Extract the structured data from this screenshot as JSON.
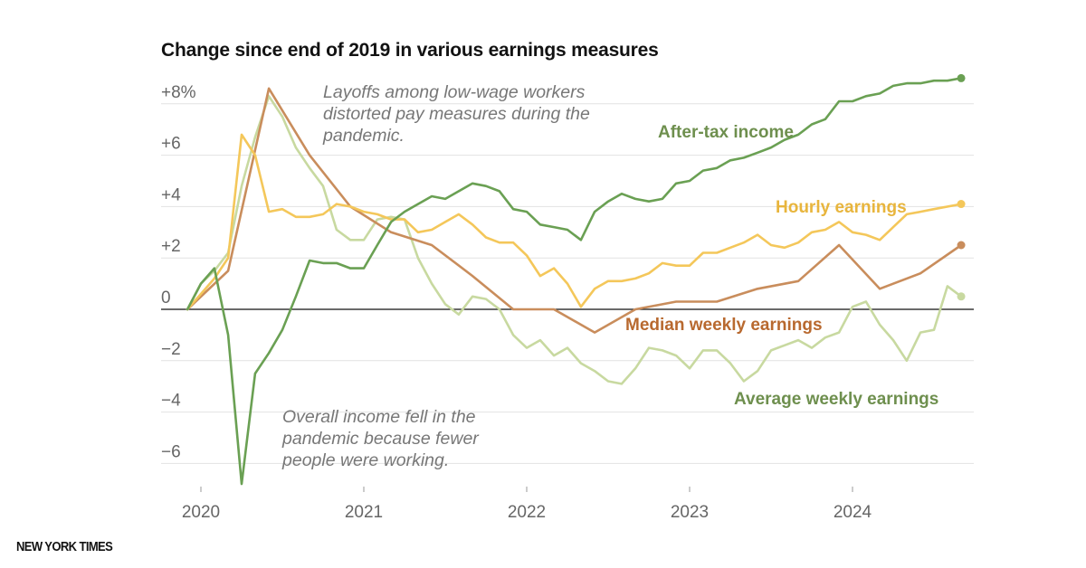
{
  "title": "Change since end of 2019 in various earnings measures",
  "logo": "NEW YORK TIMES",
  "notes": {
    "top": [
      "Layoffs among low-wage workers",
      "distorted pay measures during the",
      "pandemic."
    ],
    "bottom": [
      "Overall income fell in the",
      "pandemic because fewer",
      "people were working."
    ]
  },
  "chart_data": {
    "type": "line",
    "title": "Change since end of 2019 in various earnings measures",
    "xlim": [
      2019.85,
      2024.8
    ],
    "ylim": [
      -6.8,
      8.8
    ],
    "x_ticks": [
      {
        "value": 2020,
        "label": "2020"
      },
      {
        "value": 2021,
        "label": "2021"
      },
      {
        "value": 2022,
        "label": "2022"
      },
      {
        "value": 2023,
        "label": "2023"
      },
      {
        "value": 2024,
        "label": "2024"
      }
    ],
    "y_ticks": [
      {
        "value": 8,
        "label": "+8%"
      },
      {
        "value": 6,
        "label": "+6"
      },
      {
        "value": 4,
        "label": "+4"
      },
      {
        "value": 2,
        "label": "+2"
      },
      {
        "value": 0,
        "label": "0"
      },
      {
        "value": -2,
        "label": "−2"
      },
      {
        "value": -4,
        "label": "−4"
      },
      {
        "value": -6,
        "label": "−6"
      }
    ],
    "grid": true,
    "series": [
      {
        "name": "Average weekly earnings",
        "color": "#c8d9a0",
        "label_color": "#6e8f4e",
        "end_marker": true,
        "points": [
          [
            2019.917,
            0
          ],
          [
            2020.0,
            1.0
          ],
          [
            2020.083,
            1.5
          ],
          [
            2020.167,
            2.2
          ],
          [
            2020.25,
            4.8
          ],
          [
            2020.333,
            6.7
          ],
          [
            2020.417,
            8.3
          ],
          [
            2020.5,
            7.5
          ],
          [
            2020.583,
            6.3
          ],
          [
            2020.667,
            5.5
          ],
          [
            2020.75,
            4.8
          ],
          [
            2020.833,
            3.1
          ],
          [
            2020.917,
            2.7
          ],
          [
            2021.0,
            2.7
          ],
          [
            2021.083,
            3.5
          ],
          [
            2021.167,
            3.6
          ],
          [
            2021.25,
            3.5
          ],
          [
            2021.333,
            2.0
          ],
          [
            2021.417,
            1.0
          ],
          [
            2021.5,
            0.2
          ],
          [
            2021.583,
            -0.2
          ],
          [
            2021.667,
            0.5
          ],
          [
            2021.75,
            0.4
          ],
          [
            2021.833,
            0.0
          ],
          [
            2021.917,
            -1.0
          ],
          [
            2022.0,
            -1.5
          ],
          [
            2022.083,
            -1.2
          ],
          [
            2022.167,
            -1.8
          ],
          [
            2022.25,
            -1.5
          ],
          [
            2022.333,
            -2.1
          ],
          [
            2022.417,
            -2.4
          ],
          [
            2022.5,
            -2.8
          ],
          [
            2022.583,
            -2.9
          ],
          [
            2022.667,
            -2.3
          ],
          [
            2022.75,
            -1.5
          ],
          [
            2022.833,
            -1.6
          ],
          [
            2022.917,
            -1.8
          ],
          [
            2023.0,
            -2.3
          ],
          [
            2023.083,
            -1.6
          ],
          [
            2023.167,
            -1.6
          ],
          [
            2023.25,
            -2.1
          ],
          [
            2023.333,
            -2.8
          ],
          [
            2023.417,
            -2.4
          ],
          [
            2023.5,
            -1.6
          ],
          [
            2023.583,
            -1.4
          ],
          [
            2023.667,
            -1.2
          ],
          [
            2023.75,
            -1.5
          ],
          [
            2023.833,
            -1.1
          ],
          [
            2023.917,
            -0.9
          ],
          [
            2024.0,
            0.1
          ],
          [
            2024.083,
            0.3
          ],
          [
            2024.167,
            -0.6
          ],
          [
            2024.25,
            -1.2
          ],
          [
            2024.333,
            -2.0
          ],
          [
            2024.417,
            -0.9
          ],
          [
            2024.5,
            -0.8
          ],
          [
            2024.583,
            0.9
          ],
          [
            2024.667,
            0.5
          ]
        ]
      },
      {
        "name": "Median weekly earnings",
        "color": "#c98d5c",
        "label_color": "#b8692f",
        "end_marker": true,
        "points": [
          [
            2019.917,
            0
          ],
          [
            2020.167,
            1.5
          ],
          [
            2020.417,
            8.6
          ],
          [
            2020.667,
            6.0
          ],
          [
            2020.917,
            4.0
          ],
          [
            2021.167,
            3.0
          ],
          [
            2021.417,
            2.5
          ],
          [
            2021.667,
            1.3
          ],
          [
            2021.917,
            0.0
          ],
          [
            2022.167,
            0.0
          ],
          [
            2022.417,
            -0.9
          ],
          [
            2022.667,
            0.0
          ],
          [
            2022.917,
            0.3
          ],
          [
            2023.167,
            0.3
          ],
          [
            2023.417,
            0.8
          ],
          [
            2023.667,
            1.1
          ],
          [
            2023.917,
            2.5
          ],
          [
            2024.167,
            0.8
          ],
          [
            2024.417,
            1.4
          ],
          [
            2024.667,
            2.5
          ]
        ]
      },
      {
        "name": "Hourly earnings",
        "color": "#f4c75a",
        "label_color": "#e8b53d",
        "end_marker": true,
        "points": [
          [
            2019.917,
            0
          ],
          [
            2020.0,
            0.6
          ],
          [
            2020.083,
            1.2
          ],
          [
            2020.167,
            2.0
          ],
          [
            2020.25,
            6.8
          ],
          [
            2020.333,
            6.0
          ],
          [
            2020.417,
            3.8
          ],
          [
            2020.5,
            3.9
          ],
          [
            2020.583,
            3.6
          ],
          [
            2020.667,
            3.6
          ],
          [
            2020.75,
            3.7
          ],
          [
            2020.833,
            4.1
          ],
          [
            2020.917,
            4.0
          ],
          [
            2021.0,
            3.8
          ],
          [
            2021.083,
            3.7
          ],
          [
            2021.167,
            3.5
          ],
          [
            2021.25,
            3.5
          ],
          [
            2021.333,
            3.0
          ],
          [
            2021.417,
            3.1
          ],
          [
            2021.5,
            3.4
          ],
          [
            2021.583,
            3.7
          ],
          [
            2021.667,
            3.3
          ],
          [
            2021.75,
            2.8
          ],
          [
            2021.833,
            2.6
          ],
          [
            2021.917,
            2.6
          ],
          [
            2022.0,
            2.1
          ],
          [
            2022.083,
            1.3
          ],
          [
            2022.167,
            1.6
          ],
          [
            2022.25,
            1.0
          ],
          [
            2022.333,
            0.1
          ],
          [
            2022.417,
            0.8
          ],
          [
            2022.5,
            1.1
          ],
          [
            2022.583,
            1.1
          ],
          [
            2022.667,
            1.2
          ],
          [
            2022.75,
            1.4
          ],
          [
            2022.833,
            1.8
          ],
          [
            2022.917,
            1.7
          ],
          [
            2023.0,
            1.7
          ],
          [
            2023.083,
            2.2
          ],
          [
            2023.167,
            2.2
          ],
          [
            2023.25,
            2.4
          ],
          [
            2023.333,
            2.6
          ],
          [
            2023.417,
            2.9
          ],
          [
            2023.5,
            2.5
          ],
          [
            2023.583,
            2.4
          ],
          [
            2023.667,
            2.6
          ],
          [
            2023.75,
            3.0
          ],
          [
            2023.833,
            3.1
          ],
          [
            2023.917,
            3.4
          ],
          [
            2024.0,
            3.0
          ],
          [
            2024.083,
            2.9
          ],
          [
            2024.167,
            2.7
          ],
          [
            2024.25,
            3.2
          ],
          [
            2024.333,
            3.7
          ],
          [
            2024.417,
            3.8
          ],
          [
            2024.5,
            3.9
          ],
          [
            2024.667,
            4.1
          ]
        ]
      },
      {
        "name": "After-tax income",
        "color": "#6aa053",
        "label_color": "#6e8f4e",
        "end_marker": true,
        "points": [
          [
            2019.917,
            0
          ],
          [
            2020.0,
            1.0
          ],
          [
            2020.083,
            1.6
          ],
          [
            2020.167,
            -1.0
          ],
          [
            2020.25,
            -6.8
          ],
          [
            2020.333,
            -2.5
          ],
          [
            2020.417,
            -1.7
          ],
          [
            2020.5,
            -0.8
          ],
          [
            2020.583,
            0.5
          ],
          [
            2020.667,
            1.9
          ],
          [
            2020.75,
            1.8
          ],
          [
            2020.833,
            1.8
          ],
          [
            2020.917,
            1.6
          ],
          [
            2021.0,
            1.6
          ],
          [
            2021.083,
            2.5
          ],
          [
            2021.167,
            3.4
          ],
          [
            2021.25,
            3.8
          ],
          [
            2021.333,
            4.1
          ],
          [
            2021.417,
            4.4
          ],
          [
            2021.5,
            4.3
          ],
          [
            2021.583,
            4.6
          ],
          [
            2021.667,
            4.9
          ],
          [
            2021.75,
            4.8
          ],
          [
            2021.833,
            4.6
          ],
          [
            2021.917,
            3.9
          ],
          [
            2022.0,
            3.8
          ],
          [
            2022.083,
            3.3
          ],
          [
            2022.167,
            3.2
          ],
          [
            2022.25,
            3.1
          ],
          [
            2022.333,
            2.7
          ],
          [
            2022.417,
            3.8
          ],
          [
            2022.5,
            4.2
          ],
          [
            2022.583,
            4.5
          ],
          [
            2022.667,
            4.3
          ],
          [
            2022.75,
            4.2
          ],
          [
            2022.833,
            4.3
          ],
          [
            2022.917,
            4.9
          ],
          [
            2023.0,
            5.0
          ],
          [
            2023.083,
            5.4
          ],
          [
            2023.167,
            5.5
          ],
          [
            2023.25,
            5.8
          ],
          [
            2023.333,
            5.9
          ],
          [
            2023.417,
            6.1
          ],
          [
            2023.5,
            6.3
          ],
          [
            2023.583,
            6.6
          ],
          [
            2023.667,
            6.8
          ],
          [
            2023.75,
            7.2
          ],
          [
            2023.833,
            7.4
          ],
          [
            2023.917,
            8.1
          ],
          [
            2024.0,
            8.1
          ],
          [
            2024.083,
            8.3
          ],
          [
            2024.167,
            8.4
          ],
          [
            2024.25,
            8.7
          ],
          [
            2024.333,
            8.8
          ],
          [
            2024.417,
            8.8
          ],
          [
            2024.5,
            8.9
          ],
          [
            2024.583,
            8.9
          ],
          [
            2024.667,
            9.0
          ]
        ]
      }
    ]
  }
}
